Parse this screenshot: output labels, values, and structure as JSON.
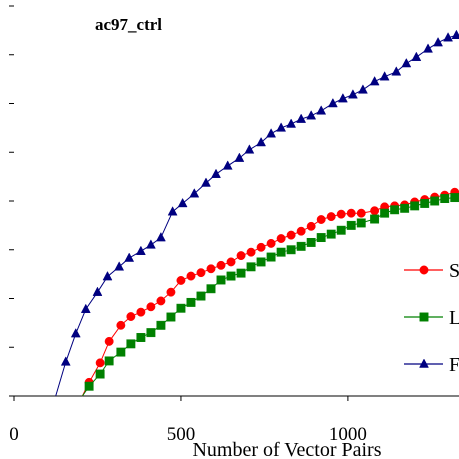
{
  "chart_data": {
    "type": "line",
    "title": "ac97_ctrl",
    "xlabel": "Number of Vector Pairs",
    "ylabel": "",
    "xlim": [
      0,
      1330
    ],
    "ylim": [
      0,
      8
    ],
    "x_ticks": [
      0,
      500,
      1000
    ],
    "x_tick_labels": [
      "0",
      "500",
      "1000"
    ],
    "y_ticks": [
      0,
      1,
      2,
      3,
      4,
      5,
      6,
      7,
      8
    ],
    "grid": false,
    "legend_position": "right",
    "series": [
      {
        "name": "S",
        "color": "#ff0000",
        "marker": "circle",
        "points": [
          [
            205,
            0.0
          ],
          [
            225,
            0.28
          ],
          [
            258,
            0.68
          ],
          [
            285,
            1.12
          ],
          [
            320,
            1.45
          ],
          [
            350,
            1.63
          ],
          [
            380,
            1.72
          ],
          [
            410,
            1.83
          ],
          [
            440,
            1.95
          ],
          [
            470,
            2.13
          ],
          [
            500,
            2.37
          ],
          [
            530,
            2.46
          ],
          [
            560,
            2.53
          ],
          [
            590,
            2.61
          ],
          [
            620,
            2.68
          ],
          [
            650,
            2.75
          ],
          [
            680,
            2.88
          ],
          [
            710,
            2.95
          ],
          [
            740,
            3.05
          ],
          [
            770,
            3.13
          ],
          [
            800,
            3.23
          ],
          [
            830,
            3.3
          ],
          [
            860,
            3.38
          ],
          [
            890,
            3.48
          ],
          [
            920,
            3.62
          ],
          [
            950,
            3.68
          ],
          [
            980,
            3.73
          ],
          [
            1010,
            3.75
          ],
          [
            1040,
            3.75
          ],
          [
            1080,
            3.8
          ],
          [
            1110,
            3.88
          ],
          [
            1140,
            3.9
          ],
          [
            1170,
            3.92
          ],
          [
            1200,
            3.98
          ],
          [
            1230,
            4.03
          ],
          [
            1260,
            4.08
          ],
          [
            1290,
            4.12
          ],
          [
            1320,
            4.18
          ]
        ]
      },
      {
        "name": "L",
        "color": "#008000",
        "marker": "square",
        "points": [
          [
            205,
            0.0
          ],
          [
            225,
            0.2
          ],
          [
            258,
            0.45
          ],
          [
            285,
            0.72
          ],
          [
            320,
            0.9
          ],
          [
            350,
            1.07
          ],
          [
            380,
            1.2
          ],
          [
            410,
            1.3
          ],
          [
            440,
            1.45
          ],
          [
            470,
            1.62
          ],
          [
            500,
            1.8
          ],
          [
            530,
            1.92
          ],
          [
            560,
            2.05
          ],
          [
            590,
            2.2
          ],
          [
            620,
            2.38
          ],
          [
            650,
            2.46
          ],
          [
            680,
            2.52
          ],
          [
            710,
            2.65
          ],
          [
            740,
            2.75
          ],
          [
            770,
            2.85
          ],
          [
            800,
            2.95
          ],
          [
            830,
            3.0
          ],
          [
            860,
            3.07
          ],
          [
            890,
            3.15
          ],
          [
            920,
            3.25
          ],
          [
            950,
            3.32
          ],
          [
            980,
            3.4
          ],
          [
            1010,
            3.5
          ],
          [
            1040,
            3.55
          ],
          [
            1080,
            3.63
          ],
          [
            1110,
            3.75
          ],
          [
            1140,
            3.82
          ],
          [
            1170,
            3.85
          ],
          [
            1200,
            3.9
          ],
          [
            1230,
            3.95
          ],
          [
            1260,
            4.0
          ],
          [
            1290,
            4.05
          ],
          [
            1320,
            4.07
          ]
        ]
      },
      {
        "name": "F",
        "color": "#000080",
        "marker": "triangle",
        "points": [
          [
            125,
            0.0
          ],
          [
            155,
            0.7
          ],
          [
            185,
            1.28
          ],
          [
            215,
            1.78
          ],
          [
            250,
            2.13
          ],
          [
            280,
            2.45
          ],
          [
            315,
            2.65
          ],
          [
            345,
            2.83
          ],
          [
            380,
            2.97
          ],
          [
            410,
            3.1
          ],
          [
            440,
            3.25
          ],
          [
            475,
            3.78
          ],
          [
            505,
            3.95
          ],
          [
            540,
            4.15
          ],
          [
            575,
            4.37
          ],
          [
            605,
            4.55
          ],
          [
            640,
            4.72
          ],
          [
            675,
            4.88
          ],
          [
            705,
            5.05
          ],
          [
            740,
            5.2
          ],
          [
            770,
            5.38
          ],
          [
            800,
            5.5
          ],
          [
            830,
            5.58
          ],
          [
            860,
            5.68
          ],
          [
            890,
            5.75
          ],
          [
            920,
            5.85
          ],
          [
            955,
            6.0
          ],
          [
            985,
            6.1
          ],
          [
            1015,
            6.18
          ],
          [
            1045,
            6.28
          ],
          [
            1080,
            6.45
          ],
          [
            1110,
            6.55
          ],
          [
            1145,
            6.65
          ],
          [
            1175,
            6.82
          ],
          [
            1205,
            6.95
          ],
          [
            1240,
            7.12
          ],
          [
            1270,
            7.25
          ],
          [
            1300,
            7.35
          ],
          [
            1325,
            7.4
          ]
        ]
      }
    ]
  }
}
